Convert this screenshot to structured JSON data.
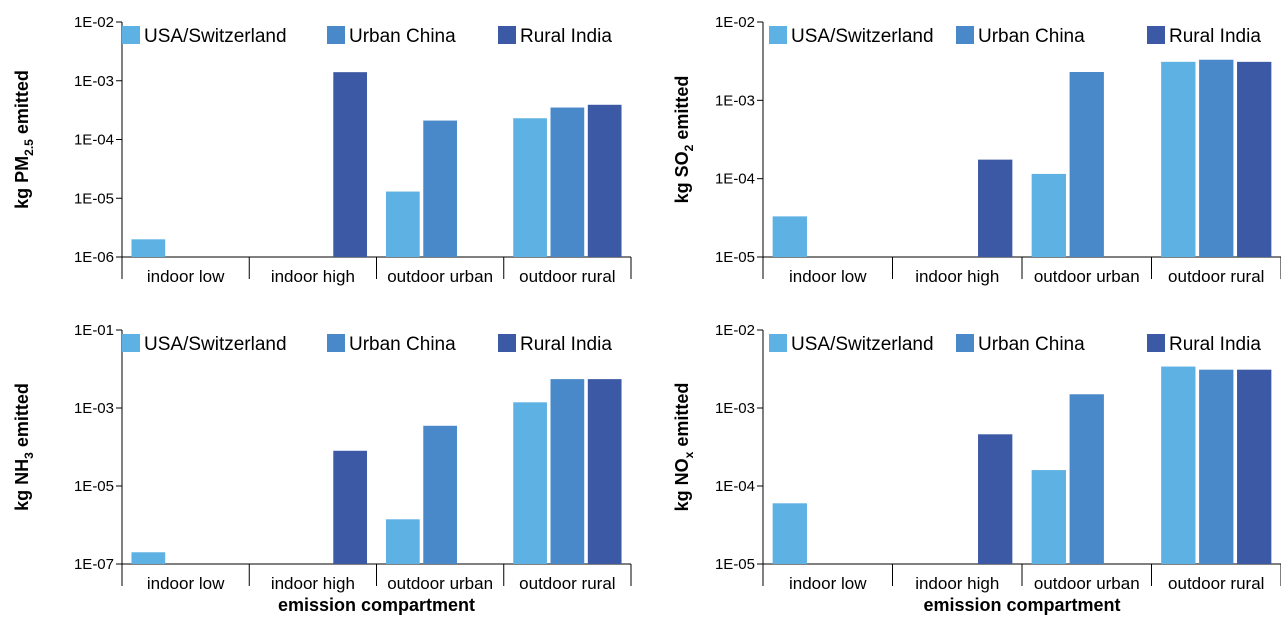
{
  "colors": {
    "USA/Switzerland": "#5eb1e3",
    "Urban China": "#4a89c9",
    "Rural India": "#3c59a6"
  },
  "chart_data": [
    {
      "type": "bar",
      "log_scale": true,
      "ylabel_parts": [
        "kg PM",
        "2.5",
        " emitted"
      ],
      "xlabel": "",
      "ylim": [
        1e-06,
        0.01
      ],
      "yticks": [
        "1E-06",
        "1E-05",
        "1E-04",
        "1E-03",
        "1E-02"
      ],
      "categories": [
        "indoor low",
        "indoor high",
        "outdoor urban",
        "outdoor rural"
      ],
      "legend": "top",
      "series": [
        {
          "name": "USA/Switzerland",
          "values": [
            2e-06,
            null,
            1.3e-05,
            0.00023
          ]
        },
        {
          "name": "Urban China",
          "values": [
            null,
            null,
            0.00021,
            0.00035
          ]
        },
        {
          "name": "Rural India",
          "values": [
            null,
            0.0014,
            null,
            0.00039
          ]
        }
      ]
    },
    {
      "type": "bar",
      "log_scale": true,
      "ylabel_parts": [
        "kg SO",
        "2",
        " emitted"
      ],
      "xlabel": "",
      "ylim": [
        1e-05,
        0.01
      ],
      "yticks": [
        "1E-05",
        "1E-04",
        "1E-03",
        "1E-02"
      ],
      "categories": [
        "indoor low",
        "indoor high",
        "outdoor urban",
        "outdoor rural"
      ],
      "legend": "top",
      "series": [
        {
          "name": "USA/Switzerland",
          "values": [
            3.3e-05,
            null,
            0.000115,
            0.0031
          ]
        },
        {
          "name": "Urban China",
          "values": [
            null,
            null,
            0.0023,
            0.0033
          ]
        },
        {
          "name": "Rural India",
          "values": [
            null,
            0.000175,
            null,
            0.0031
          ]
        }
      ]
    },
    {
      "type": "bar",
      "log_scale": true,
      "ylabel_parts": [
        "kg NH",
        "3",
        " emitted"
      ],
      "xlabel": "emission compartment",
      "ylim": [
        1e-07,
        0.1
      ],
      "yticks": [
        "1E-07",
        "1E-05",
        "1E-03",
        "1E-01"
      ],
      "categories": [
        "indoor low",
        "indoor high",
        "outdoor urban",
        "outdoor rural"
      ],
      "legend": "top",
      "series": [
        {
          "name": "USA/Switzerland",
          "values": [
            2e-07,
            null,
            1.4e-06,
            0.0014
          ]
        },
        {
          "name": "Urban China",
          "values": [
            null,
            null,
            0.00035,
            0.0055
          ]
        },
        {
          "name": "Rural India",
          "values": [
            null,
            8e-05,
            null,
            0.0055
          ]
        }
      ]
    },
    {
      "type": "bar",
      "log_scale": true,
      "ylabel_parts": [
        "kg NO",
        "x",
        " emitted"
      ],
      "xlabel": "emission compartment",
      "ylim": [
        1e-05,
        0.01
      ],
      "yticks": [
        "1E-05",
        "1E-04",
        "1E-03",
        "1E-02"
      ],
      "categories": [
        "indoor low",
        "indoor high",
        "outdoor urban",
        "outdoor rural"
      ],
      "legend": "top",
      "series": [
        {
          "name": "USA/Switzerland",
          "values": [
            6e-05,
            null,
            0.00016,
            0.0034
          ]
        },
        {
          "name": "Urban China",
          "values": [
            null,
            null,
            0.0015,
            0.0031
          ]
        },
        {
          "name": "Rural India",
          "values": [
            null,
            0.00046,
            null,
            0.0031
          ]
        }
      ]
    }
  ]
}
